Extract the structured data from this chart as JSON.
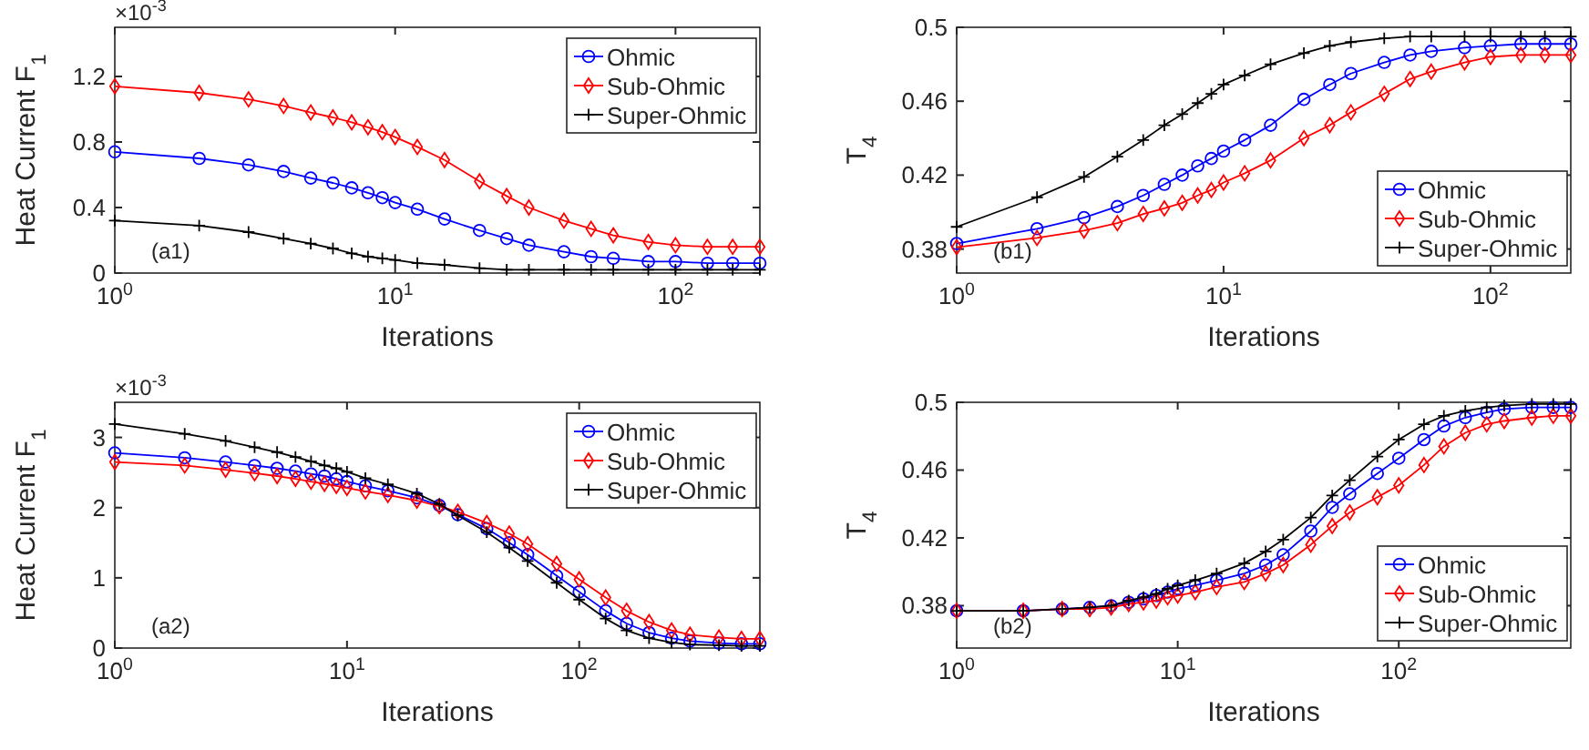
{
  "chart_data": [
    {
      "type": "line",
      "xlabel": "Iterations",
      "ylabel": "Heat Current F$_{1}$",
      "annotations": [
        "×10$^{-3}$",
        "(a1)"
      ],
      "log": "x",
      "grid": false,
      "legend": "top right",
      "line_style": "solid",
      "x": [
        1,
        2,
        3,
        4,
        5,
        6,
        7,
        8,
        9,
        10,
        12,
        15,
        20,
        25,
        30,
        40,
        50,
        60,
        80,
        100,
        130,
        160,
        200
      ],
      "xlim": [
        1,
        200
      ],
      "xticks": [
        {
          "value": 1,
          "label": "10$^{0}$"
        },
        {
          "value": 10,
          "label": "10$^{1}$"
        },
        {
          "value": 100,
          "label": "10$^{2}$"
        }
      ],
      "ylim": [
        0,
        1.5
      ],
      "yticks": [
        0,
        0.4,
        0.8,
        1.2
      ],
      "series": [
        {
          "name": "Ohmic",
          "color": "#0000ff",
          "marker": "circle",
          "values": [
            0.74,
            0.7,
            0.66,
            0.62,
            0.58,
            0.55,
            0.52,
            0.49,
            0.46,
            0.43,
            0.39,
            0.33,
            0.26,
            0.21,
            0.17,
            0.13,
            0.1,
            0.09,
            0.07,
            0.07,
            0.06,
            0.06,
            0.06
          ]
        },
        {
          "name": "Sub-Ohmic",
          "color": "#ff0000",
          "marker": "diamond",
          "values": [
            1.14,
            1.1,
            1.06,
            1.02,
            0.98,
            0.95,
            0.92,
            0.89,
            0.86,
            0.83,
            0.77,
            0.69,
            0.56,
            0.47,
            0.4,
            0.32,
            0.27,
            0.23,
            0.19,
            0.17,
            0.16,
            0.16,
            0.16
          ]
        },
        {
          "name": "Super-Ohmic",
          "color": "#000000",
          "marker": "cross",
          "values": [
            0.32,
            0.29,
            0.25,
            0.21,
            0.18,
            0.15,
            0.12,
            0.1,
            0.09,
            0.08,
            0.06,
            0.05,
            0.03,
            0.02,
            0.02,
            0.02,
            0.02,
            0.02,
            0.02,
            0.02,
            0.02,
            0.02,
            0.02
          ]
        }
      ]
    },
    {
      "type": "line",
      "xlabel": "Iterations",
      "ylabel": "T$_{4}$",
      "annotations": [
        "(b1)"
      ],
      "log": "x",
      "grid": false,
      "legend": "bottom right",
      "line_style": "solid",
      "x": [
        1,
        2,
        3,
        4,
        5,
        6,
        7,
        8,
        9,
        10,
        12,
        15,
        20,
        25,
        30,
        40,
        50,
        60,
        80,
        100,
        130,
        160,
        200
      ],
      "xlim": [
        1,
        200
      ],
      "xticks": [
        {
          "value": 1,
          "label": "10$^{0}$"
        },
        {
          "value": 10,
          "label": "10$^{1}$"
        },
        {
          "value": 100,
          "label": "10$^{2}$"
        }
      ],
      "ylim": [
        0.367,
        0.5
      ],
      "yticks": [
        0.38,
        0.42,
        0.46,
        0.5
      ],
      "series": [
        {
          "name": "Ohmic",
          "color": "#0000ff",
          "marker": "circle",
          "values": [
            0.383,
            0.391,
            0.397,
            0.403,
            0.409,
            0.415,
            0.42,
            0.425,
            0.429,
            0.433,
            0.439,
            0.447,
            0.461,
            0.469,
            0.475,
            0.481,
            0.485,
            0.487,
            0.489,
            0.49,
            0.491,
            0.491,
            0.491
          ]
        },
        {
          "name": "Sub-Ohmic",
          "color": "#ff0000",
          "marker": "diamond",
          "values": [
            0.381,
            0.386,
            0.39,
            0.394,
            0.399,
            0.402,
            0.405,
            0.409,
            0.412,
            0.416,
            0.421,
            0.428,
            0.44,
            0.447,
            0.454,
            0.464,
            0.472,
            0.476,
            0.481,
            0.484,
            0.485,
            0.485,
            0.485
          ]
        },
        {
          "name": "Super-Ohmic",
          "color": "#000000",
          "marker": "cross",
          "values": [
            0.392,
            0.408,
            0.419,
            0.43,
            0.439,
            0.447,
            0.453,
            0.459,
            0.464,
            0.469,
            0.474,
            0.48,
            0.486,
            0.49,
            0.492,
            0.494,
            0.495,
            0.495,
            0.495,
            0.495,
            0.495,
            0.495,
            0.495
          ]
        }
      ]
    },
    {
      "type": "line",
      "xlabel": "Iterations",
      "ylabel": "Heat Current F$_{1}$",
      "annotations": [
        "×10$^{-3}$",
        "(a2)"
      ],
      "log": "x",
      "grid": false,
      "legend": "top right",
      "line_style": "solid",
      "x": [
        1,
        2,
        3,
        4,
        5,
        6,
        7,
        8,
        9,
        10,
        12,
        15,
        20,
        25,
        30,
        40,
        50,
        60,
        80,
        100,
        130,
        160,
        200,
        250,
        300,
        400,
        500,
        600
      ],
      "xlim": [
        1,
        600
      ],
      "xticks": [
        {
          "value": 1,
          "label": "10$^{0}$"
        },
        {
          "value": 10,
          "label": "10$^{1}$"
        },
        {
          "value": 100,
          "label": "10$^{2}$"
        }
      ],
      "ylim": [
        0,
        3.5
      ],
      "yticks": [
        0,
        1,
        2,
        3
      ],
      "series": [
        {
          "name": "Ohmic",
          "color": "#0000ff",
          "marker": "circle",
          "values": [
            2.78,
            2.71,
            2.65,
            2.6,
            2.56,
            2.52,
            2.48,
            2.45,
            2.41,
            2.37,
            2.31,
            2.24,
            2.14,
            2.03,
            1.9,
            1.7,
            1.5,
            1.33,
            1.03,
            0.8,
            0.53,
            0.35,
            0.22,
            0.14,
            0.1,
            0.07,
            0.06,
            0.06
          ]
        },
        {
          "name": "Sub-Ohmic",
          "color": "#ff0000",
          "marker": "diamond",
          "values": [
            2.65,
            2.6,
            2.54,
            2.49,
            2.45,
            2.41,
            2.37,
            2.34,
            2.31,
            2.28,
            2.23,
            2.18,
            2.1,
            2.02,
            1.94,
            1.78,
            1.63,
            1.48,
            1.2,
            0.98,
            0.72,
            0.53,
            0.37,
            0.25,
            0.19,
            0.15,
            0.13,
            0.13
          ]
        },
        {
          "name": "Super-Ohmic",
          "color": "#000000",
          "marker": "cross",
          "values": [
            3.19,
            3.05,
            2.95,
            2.86,
            2.79,
            2.72,
            2.66,
            2.6,
            2.56,
            2.51,
            2.42,
            2.33,
            2.2,
            2.05,
            1.89,
            1.65,
            1.43,
            1.24,
            0.93,
            0.69,
            0.42,
            0.25,
            0.14,
            0.08,
            0.05,
            0.04,
            0.03,
            0.03
          ]
        }
      ]
    },
    {
      "type": "line",
      "xlabel": "Iterations",
      "ylabel": "T$_{4}$",
      "annotations": [
        "(b2)"
      ],
      "log": "x",
      "grid": false,
      "legend": "bottom right",
      "line_style": "solid",
      "x": [
        1,
        2,
        3,
        4,
        5,
        6,
        7,
        8,
        9,
        10,
        12,
        15,
        20,
        25,
        30,
        40,
        50,
        60,
        80,
        100,
        130,
        160,
        200,
        250,
        300,
        400,
        500,
        600
      ],
      "xlim": [
        1,
        600
      ],
      "xticks": [
        {
          "value": 1,
          "label": "10$^{0}$"
        },
        {
          "value": 10,
          "label": "10$^{1}$"
        },
        {
          "value": 100,
          "label": "10$^{2}$"
        }
      ],
      "ylim": [
        0.355,
        0.5
      ],
      "yticks": [
        0.38,
        0.42,
        0.46,
        0.5
      ],
      "series": [
        {
          "name": "Ohmic",
          "color": "#0000ff",
          "marker": "circle",
          "values": [
            0.377,
            0.377,
            0.378,
            0.379,
            0.38,
            0.382,
            0.384,
            0.386,
            0.388,
            0.39,
            0.392,
            0.395,
            0.399,
            0.404,
            0.41,
            0.424,
            0.438,
            0.446,
            0.458,
            0.467,
            0.478,
            0.486,
            0.491,
            0.494,
            0.496,
            0.497,
            0.497,
            0.497
          ]
        },
        {
          "name": "Sub-Ohmic",
          "color": "#ff0000",
          "marker": "diamond",
          "values": [
            0.377,
            0.377,
            0.378,
            0.378,
            0.379,
            0.381,
            0.382,
            0.383,
            0.385,
            0.386,
            0.388,
            0.391,
            0.394,
            0.399,
            0.404,
            0.416,
            0.427,
            0.435,
            0.444,
            0.451,
            0.463,
            0.474,
            0.482,
            0.487,
            0.489,
            0.491,
            0.492,
            0.492
          ]
        },
        {
          "name": "Super-Ohmic",
          "color": "#000000",
          "marker": "cross",
          "values": [
            0.377,
            0.377,
            0.378,
            0.379,
            0.38,
            0.383,
            0.385,
            0.387,
            0.39,
            0.392,
            0.395,
            0.399,
            0.405,
            0.412,
            0.419,
            0.432,
            0.445,
            0.454,
            0.468,
            0.478,
            0.487,
            0.492,
            0.495,
            0.497,
            0.498,
            0.499,
            0.499,
            0.499
          ]
        }
      ]
    }
  ]
}
